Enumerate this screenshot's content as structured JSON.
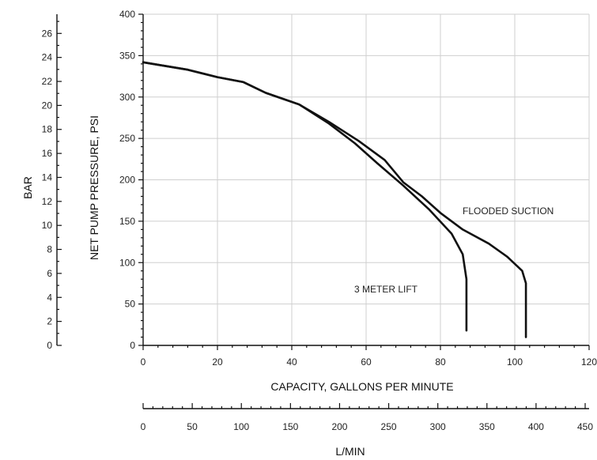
{
  "chart_data": {
    "type": "line",
    "xlabel": "CAPACITY, GALLONS PER MINUTE",
    "ylabel": "NET PUMP PRESSURE, PSI",
    "xlim": [
      0,
      120
    ],
    "ylim": [
      0,
      400
    ],
    "x_ticks": [
      "0",
      "20",
      "40",
      "60",
      "80",
      "100",
      "120"
    ],
    "y_ticks": [
      "0",
      "50",
      "100",
      "150",
      "200",
      "250",
      "300",
      "350",
      "400"
    ],
    "grid": true,
    "secondary_y": {
      "label": "BAR",
      "range": [
        0,
        27.6
      ],
      "ticks": [
        "0",
        "2",
        "4",
        "6",
        "8",
        "10",
        "12",
        "14",
        "16",
        "18",
        "20",
        "22",
        "24",
        "26"
      ]
    },
    "secondary_x": {
      "label": "L/MIN",
      "range": [
        0,
        454
      ],
      "ticks": [
        "0",
        "50",
        "100",
        "150",
        "200",
        "250",
        "300",
        "350",
        "400",
        "450"
      ]
    },
    "series": [
      {
        "name": "FLOODED SUCTION",
        "x": [
          0,
          12,
          20,
          27,
          33,
          42,
          50,
          58,
          65,
          70,
          75,
          80,
          86,
          93,
          98,
          102,
          103,
          103
        ],
        "y": [
          342,
          333,
          324,
          318,
          305,
          291,
          270,
          247,
          224,
          197,
          180,
          160,
          140,
          123,
          107,
          90,
          75,
          10
        ]
      },
      {
        "name": "3 METER LIFT",
        "x": [
          0,
          12,
          20,
          27,
          33,
          42,
          50,
          57,
          63,
          70,
          77,
          83,
          86,
          87,
          87
        ],
        "y": [
          342,
          333,
          324,
          318,
          305,
          291,
          268,
          244,
          220,
          193,
          164,
          135,
          110,
          80,
          18
        ]
      }
    ],
    "annotations": [
      {
        "text": "FLOODED SUCTION",
        "series": "FLOODED SUCTION"
      },
      {
        "text": "3 METER LIFT",
        "series": "3 METER LIFT"
      }
    ]
  }
}
